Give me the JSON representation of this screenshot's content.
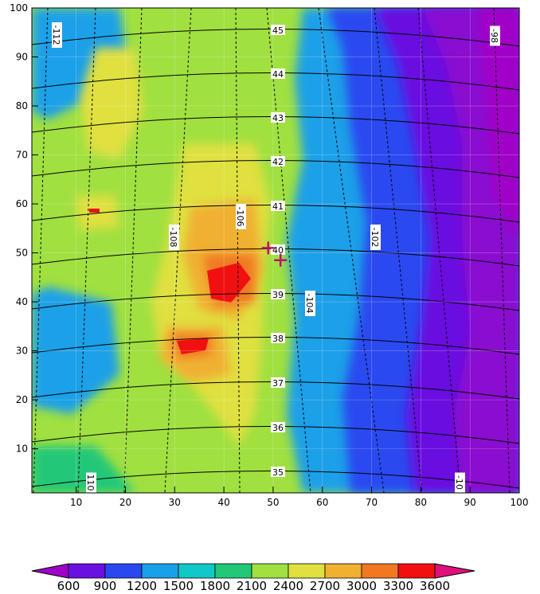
{
  "map": {
    "x_axis": {
      "range": [
        1,
        100
      ],
      "ticks": [
        "10",
        "20",
        "30",
        "40",
        "50",
        "60",
        "70",
        "80",
        "90",
        "100"
      ]
    },
    "y_axis": {
      "range": [
        1,
        100
      ],
      "ticks": [
        "10",
        "20",
        "30",
        "40",
        "50",
        "60",
        "70",
        "80",
        "90",
        "100"
      ]
    },
    "latitude_labels": [
      "35",
      "36",
      "37",
      "38",
      "39",
      "40",
      "41",
      "42",
      "43",
      "44",
      "45"
    ],
    "longitude_labels": [
      "110",
      "-112",
      "-108",
      "-106",
      "-104",
      "-102",
      "-98",
      "-10"
    ],
    "markers": [
      {
        "symbol": "+",
        "x": 49,
        "y": 51,
        "color": "#c0106a"
      },
      {
        "symbol": "+",
        "x": 51.5,
        "y": 48.5,
        "color": "#c0106a"
      }
    ]
  },
  "colorbar": {
    "labels": [
      "600",
      "900",
      "1200",
      "1500",
      "1800",
      "2100",
      "2400",
      "2700",
      "3000",
      "3300",
      "3600"
    ],
    "colors": [
      "#a000c8",
      "#6a10e0",
      "#2a48f0",
      "#1aa0e8",
      "#10c8c8",
      "#20c878",
      "#a0e040",
      "#e0e040",
      "#f0b030",
      "#f07820",
      "#f01010",
      "#e0107a"
    ]
  },
  "chart_data": {
    "type": "heatmap",
    "title": "",
    "variable_levels": [
      600,
      900,
      1200,
      1500,
      1800,
      2100,
      2400,
      2700,
      3000,
      3300,
      3600
    ],
    "xlim": [
      1,
      100
    ],
    "ylim": [
      1,
      100
    ],
    "grid": true
  }
}
